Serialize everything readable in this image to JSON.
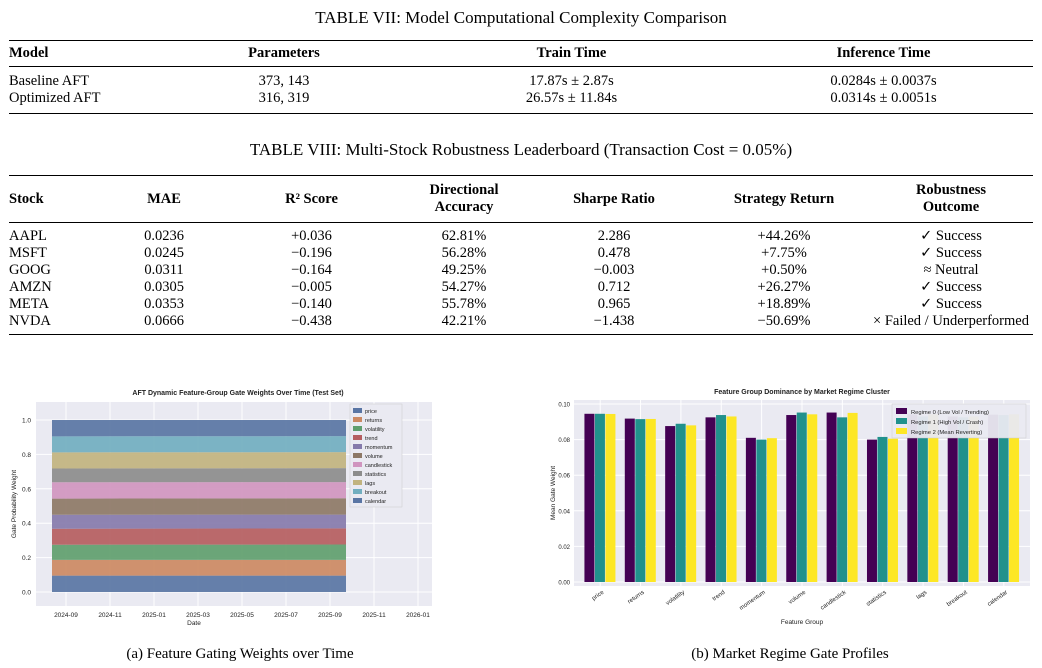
{
  "table7": {
    "caption": "TABLE VII: Model Computational Complexity Comparison",
    "headers": [
      "Model",
      "Parameters",
      "Train Time",
      "Inference Time"
    ],
    "rows": [
      [
        "Baseline AFT",
        "373, 143",
        "17.87s ± 2.87s",
        "0.0284s ± 0.0037s"
      ],
      [
        "Optimized AFT",
        "316, 319",
        "26.57s ± 11.84s",
        "0.0314s ± 0.0051s"
      ]
    ]
  },
  "table8": {
    "caption": "TABLE VIII: Multi-Stock Robustness Leaderboard (Transaction Cost = 0.05%)",
    "headers": [
      "Stock",
      "MAE",
      "R² Score",
      "Directional Accuracy",
      "Sharpe Ratio",
      "Strategy Return",
      "Robustness Outcome"
    ],
    "rows": [
      [
        "AAPL",
        "0.0236",
        "+0.036",
        "62.81%",
        "2.286",
        "+44.26%",
        "✓ Success"
      ],
      [
        "MSFT",
        "0.0245",
        "−0.196",
        "56.28%",
        "0.478",
        "+7.75%",
        "✓ Success"
      ],
      [
        "GOOG",
        "0.0311",
        "−0.164",
        "49.25%",
        "−0.003",
        "+0.50%",
        "≈ Neutral"
      ],
      [
        "AMZN",
        "0.0305",
        "−0.005",
        "54.27%",
        "0.712",
        "+26.27%",
        "✓ Success"
      ],
      [
        "META",
        "0.0353",
        "−0.140",
        "55.78%",
        "0.965",
        "+18.89%",
        "✓ Success"
      ],
      [
        "NVDA",
        "0.0666",
        "−0.438",
        "42.21%",
        "−1.438",
        "−50.69%",
        "× Failed / Underperformed"
      ]
    ]
  },
  "figure_a": {
    "caption": "(a) Feature Gating Weights over Time"
  },
  "figure_b": {
    "caption": "(b) Market Regime Gate Profiles"
  },
  "chart_data": [
    {
      "type": "area",
      "title": "AFT Dynamic Feature-Group Gate Weights Over Time (Test Set)",
      "xlabel": "Date",
      "ylabel": "Gate Probability Weight",
      "x_ticks": [
        "2024-09",
        "2024-11",
        "2025-01",
        "2025-03",
        "2025-05",
        "2025-07",
        "2025-09",
        "2025-11",
        "2026-01"
      ],
      "y_ticks": [
        "0.0",
        "0.2",
        "0.4",
        "0.6",
        "0.8",
        "1.0"
      ],
      "ylim": [
        0,
        1
      ],
      "grid": true,
      "legend": "right",
      "series": [
        {
          "name": "price",
          "values": [
            0.095,
            0.095
          ],
          "color": "#5975a4"
        },
        {
          "name": "returns",
          "values": [
            0.092,
            0.092
          ],
          "color": "#cc8963"
        },
        {
          "name": "volatility",
          "values": [
            0.088,
            0.089
          ],
          "color": "#5f9e6e"
        },
        {
          "name": "trend",
          "values": [
            0.093,
            0.094
          ],
          "color": "#b55d60"
        },
        {
          "name": "momentum",
          "values": [
            0.081,
            0.08
          ],
          "color": "#857aab"
        },
        {
          "name": "volume",
          "values": [
            0.094,
            0.095
          ],
          "color": "#8d7866"
        },
        {
          "name": "candlestick",
          "values": [
            0.095,
            0.094
          ],
          "color": "#d095bf"
        },
        {
          "name": "statistics",
          "values": [
            0.08,
            0.081
          ],
          "color": "#8c8c8c"
        },
        {
          "name": "lags",
          "values": [
            0.094,
            0.093
          ],
          "color": "#c1b37f"
        },
        {
          "name": "breakout",
          "values": [
            0.093,
            0.093
          ],
          "color": "#71aec0"
        },
        {
          "name": "calendar",
          "values": [
            0.095,
            0.094
          ],
          "color": "#5975a4"
        }
      ]
    },
    {
      "type": "bar",
      "title": "Feature Group Dominance by Market Regime Cluster",
      "xlabel": "Feature Group",
      "ylabel": "Mean Gate Weight",
      "categories": [
        "price",
        "returns",
        "volatility",
        "trend",
        "momentum",
        "volume",
        "candlestick",
        "statistics",
        "lags",
        "breakout",
        "calendar"
      ],
      "ylim": [
        0,
        0.1
      ],
      "y_ticks": [
        "0.00",
        "0.02",
        "0.04",
        "0.06",
        "0.08",
        "0.10"
      ],
      "grid": true,
      "legend": "top-right",
      "series": [
        {
          "name": "Regime 0 (Low Vol / Trending)",
          "color": "#440154",
          "values": [
            0.0945,
            0.0918,
            0.0876,
            0.0925,
            0.081,
            0.0938,
            0.0952,
            0.08,
            0.0942,
            0.093,
            0.094
          ]
        },
        {
          "name": "Regime 1 (High Vol / Crash)",
          "color": "#21918c",
          "values": [
            0.0945,
            0.0915,
            0.0889,
            0.0938,
            0.08,
            0.0952,
            0.0925,
            0.0815,
            0.093,
            0.0925,
            0.0938
          ]
        },
        {
          "name": "Regime 2 (Mean Reverting)",
          "color": "#fde725",
          "values": [
            0.0944,
            0.0916,
            0.088,
            0.093,
            0.0808,
            0.0942,
            0.095,
            0.0805,
            0.0942,
            0.093,
            0.0942
          ]
        }
      ]
    }
  ]
}
